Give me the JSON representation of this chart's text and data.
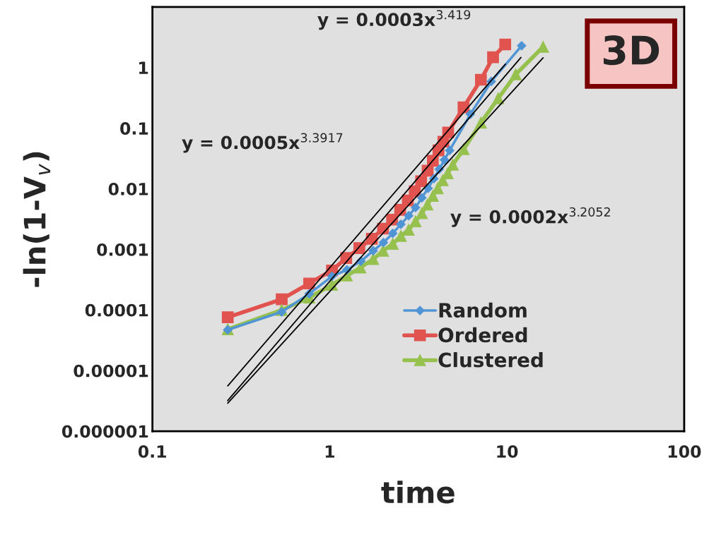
{
  "chart_data": {
    "type": "line",
    "xlabel": "time",
    "ylabel": "-ln(1-V$_{v}$)",
    "log": "xy",
    "xlim": [
      0.1,
      100
    ],
    "xticks": [
      0.1,
      1,
      10,
      100
    ],
    "ylim": [
      1e-06,
      10
    ],
    "yticks": [
      {
        "value": 1e-06,
        "label": "0.000001"
      },
      {
        "value": 1e-05,
        "label": "0.00001"
      },
      0.0001,
      0.001,
      0.01,
      0.1,
      1,
      {
        "value": 10,
        "label": null
      }
    ],
    "grid": false,
    "legend": "bottom right",
    "series": [
      {
        "name": "Random",
        "color": "#4f94d4",
        "marker": "diamond",
        "x": [
          0.266,
          0.536,
          0.766,
          1.03,
          1.25,
          1.5,
          1.76,
          2.01,
          2.27,
          2.52,
          2.79,
          3.05,
          3.31,
          3.59,
          3.87,
          4.15,
          4.44,
          4.75,
          6.22,
          8.16,
          12.1
        ],
        "values": [
          4.7e-05,
          9.3e-05,
          0.000185,
          0.00036,
          0.00046,
          0.00064,
          0.00095,
          0.0013,
          0.00184,
          0.0026,
          0.0036,
          0.0049,
          0.0071,
          0.0102,
          0.0147,
          0.021,
          0.03,
          0.043,
          0.17,
          0.59,
          2.29
        ]
      },
      {
        "name": "Ordered",
        "color": "#e0534f",
        "marker": "square",
        "x": [
          0.266,
          0.536,
          0.766,
          1.03,
          1.24,
          1.47,
          1.73,
          2.0,
          2.25,
          2.5,
          2.76,
          3.02,
          3.28,
          3.57,
          3.82,
          4.11,
          4.38,
          4.66,
          5.69,
          7.13,
          8.35,
          9.78
        ],
        "values": [
          7.6e-05,
          0.00015,
          0.000274,
          0.00045,
          0.00072,
          0.00105,
          0.0015,
          0.0022,
          0.0031,
          0.0045,
          0.0064,
          0.0091,
          0.0133,
          0.0199,
          0.029,
          0.043,
          0.06,
          0.085,
          0.221,
          0.63,
          1.48,
          2.41
        ]
      },
      {
        "name": "Clustered",
        "color": "#97c14f",
        "marker": "triangle",
        "x": [
          0.266,
          0.536,
          0.766,
          1.03,
          1.25,
          1.49,
          1.76,
          2.0,
          2.27,
          2.52,
          2.79,
          3.05,
          3.31,
          3.56,
          3.82,
          4.07,
          4.34,
          4.63,
          4.95,
          5.7,
          7.13,
          8.93,
          11.2,
          16.0
        ],
        "values": [
          4.8e-05,
          0.0001,
          0.00016,
          0.00026,
          0.00037,
          0.0005,
          0.00069,
          0.00095,
          0.00123,
          0.00166,
          0.0021,
          0.0029,
          0.00395,
          0.0055,
          0.0076,
          0.0102,
          0.0138,
          0.018,
          0.025,
          0.045,
          0.123,
          0.31,
          0.77,
          2.2
        ]
      },
      {
        "color": "#000000",
        "marker": "none",
        "x": [
          0.266,
          9.8
        ],
        "values": [
          5.6e-06,
          1.14
        ]
      },
      {
        "color": "#000000",
        "marker": "none",
        "x": [
          0.266,
          12.0
        ],
        "values": [
          3.2e-06,
          1.47
        ]
      },
      {
        "color": "#000000",
        "marker": "none",
        "x": [
          0.266,
          16.0
        ],
        "values": [
          2.9e-06,
          1.45
        ]
      }
    ],
    "annotations": [
      "y = 0.0003x$^{3.419}$",
      "y = 0.0005x$^{3.3917}$",
      "y = 0.0002x$^{3.2052}$",
      "3D"
    ]
  }
}
